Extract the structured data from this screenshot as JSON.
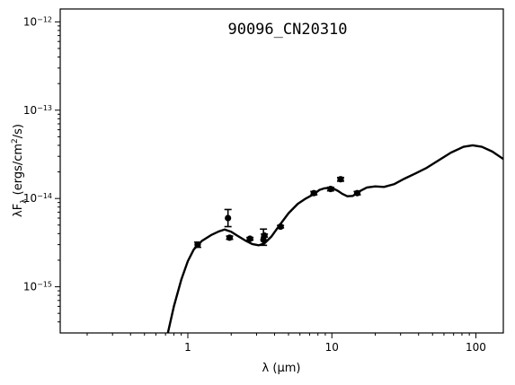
{
  "chart_data": {
    "type": "scatter",
    "title": "90096_CN20310",
    "xlabel": "λ (μm)",
    "ylabel": "λF_λ (ergs/cm²/s)",
    "xscale": "log",
    "yscale": "log",
    "xlim": [
      0.13,
      155
    ],
    "ylim": [
      3e-16,
      1.4e-12
    ],
    "xticks": [
      {
        "value": 1,
        "label": "1"
      },
      {
        "value": 10,
        "label": "10"
      },
      {
        "value": 100,
        "label": "100"
      }
    ],
    "yticks": [
      {
        "value": 1e-12,
        "mant": "10",
        "exp": "−12"
      },
      {
        "value": 1e-13,
        "mant": "10",
        "exp": "−13"
      },
      {
        "value": 1e-14,
        "mant": "10",
        "exp": "−14"
      },
      {
        "value": 1e-15,
        "mant": "10",
        "exp": "−15"
      }
    ],
    "grid": false,
    "series": [
      {
        "kind": "model",
        "style": "line",
        "color": "#000000",
        "x": [
          0.72,
          0.8,
          0.9,
          1.0,
          1.1,
          1.25,
          1.45,
          1.65,
          1.8,
          2.0,
          2.2,
          2.5,
          2.8,
          3.1,
          3.4,
          3.8,
          4.3,
          5.0,
          5.8,
          6.6,
          7.5,
          8.2,
          8.8,
          9.5,
          10.3,
          11.0,
          11.8,
          12.8,
          14.0,
          15.5,
          17.5,
          20.0,
          23.0,
          27.0,
          32.0,
          38.0,
          45.0,
          55.0,
          67.0,
          82.0,
          95.0,
          110.0,
          130.0,
          155.0
        ],
        "y": [
          2.8e-16,
          6e-16,
          1.2e-15,
          1.95e-15,
          2.65e-15,
          3.3e-15,
          3.85e-15,
          4.25e-15,
          4.45e-15,
          4.2e-15,
          3.8e-15,
          3.35e-15,
          3.05e-15,
          2.95e-15,
          3.1e-15,
          3.7e-15,
          4.9e-15,
          6.8e-15,
          8.7e-15,
          1e-14,
          1.12e-14,
          1.25e-14,
          1.3e-14,
          1.32e-14,
          1.29e-14,
          1.22e-14,
          1.13e-14,
          1.06e-14,
          1.07e-14,
          1.2e-14,
          1.33e-14,
          1.37e-14,
          1.35e-14,
          1.45e-14,
          1.68e-14,
          1.92e-14,
          2.2e-14,
          2.7e-14,
          3.3e-14,
          3.85e-14,
          4e-14,
          3.85e-14,
          3.4e-14,
          2.8e-14
        ]
      },
      {
        "kind": "observed",
        "style": "points",
        "color": "#000000",
        "x": [
          1.17,
          1.9,
          1.95,
          2.7,
          3.35,
          3.4,
          4.4,
          7.5,
          9.8,
          11.5,
          15.0
        ],
        "y": [
          3e-15,
          6e-15,
          3.6e-15,
          3.5e-15,
          3.4e-15,
          3.8e-15,
          4.8e-15,
          1.15e-14,
          1.28e-14,
          1.65e-14,
          1.15e-14
        ],
        "yerr_low": [
          2.8e-15,
          4.8e-15,
          3.45e-15,
          3.38e-15,
          2.95e-15,
          3.65e-15,
          4.65e-15,
          1.1e-14,
          1.22e-14,
          1.57e-14,
          1.1e-14
        ],
        "yerr_high": [
          3.2e-15,
          7.5e-15,
          3.75e-15,
          3.62e-15,
          4.5e-15,
          3.95e-15,
          4.95e-15,
          1.2e-14,
          1.34e-14,
          1.73e-14,
          1.2e-14
        ]
      }
    ]
  }
}
